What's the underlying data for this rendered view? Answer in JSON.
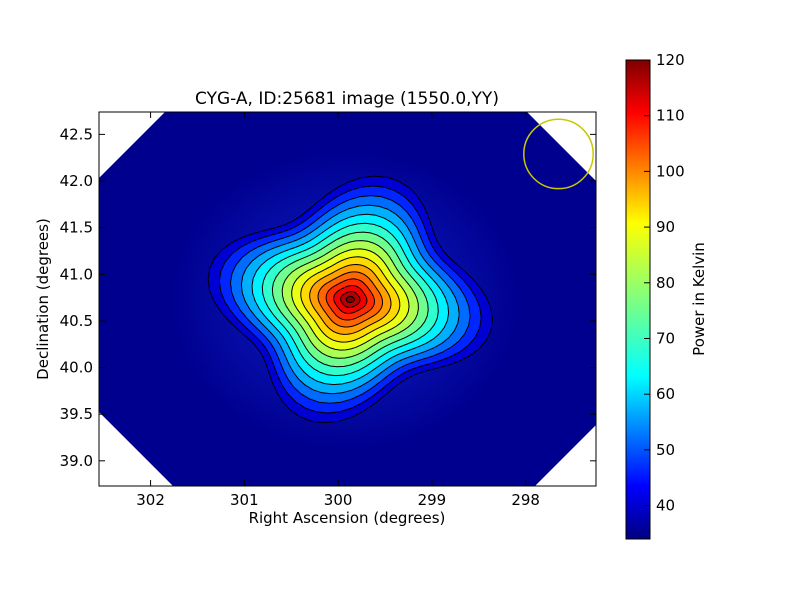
{
  "chart_data": {
    "type": "heatmap",
    "title": "CYG-A, ID:25681 image (1550.0,YY)",
    "xlabel": "Right Ascension (degrees)",
    "ylabel": "Declination (degrees)",
    "xlim": [
      302.55,
      297.25
    ],
    "ylim": [
      38.73,
      42.74
    ],
    "x_ticks": [
      302,
      301,
      300,
      299,
      298
    ],
    "x_tick_labels": [
      "302",
      "301",
      "300",
      "299",
      "298"
    ],
    "y_ticks": [
      39.0,
      39.5,
      40.0,
      40.5,
      41.0,
      41.5,
      42.0,
      42.5
    ],
    "y_tick_labels": [
      "39.0",
      "39.5",
      "40.0",
      "40.5",
      "41.0",
      "41.5",
      "42.0",
      "42.5"
    ],
    "colorbar": {
      "label": "Power in Kelvin",
      "range": [
        34,
        120
      ],
      "ticks": [
        40,
        50,
        60,
        70,
        80,
        90,
        100,
        110,
        120
      ],
      "tick_labels": [
        "40",
        "50",
        "60",
        "70",
        "80",
        "90",
        "100",
        "110",
        "120"
      ],
      "colormap": "jet"
    },
    "source": {
      "ra": 299.87,
      "dec": 40.73,
      "peak_kelvin": 120,
      "background_kelvin": 37
    },
    "contour_count": 16,
    "beam_circle": {
      "ra": 297.65,
      "dec": 42.29,
      "radius_deg": 0.37,
      "color": "#c8c800"
    },
    "contour_color": "#000000",
    "blank_color": "#ffffff"
  }
}
